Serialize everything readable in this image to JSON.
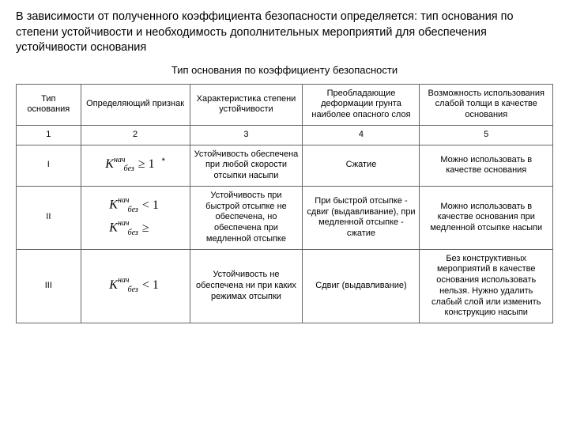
{
  "intro": "В зависимости от полученного коэффициента безопасности определяется: тип основания по степени устойчивости и необходимость дополнительных мероприятий для обеспечения устойчивости основания",
  "caption": "Тип основания по коэффициенту безопасности",
  "headers": {
    "h1": "Тип основания",
    "h2": "Определяющий признак",
    "h3": "Характеристика степени устойчивости",
    "h4": "Преобладающие деформации грунта наиболее опасного слоя",
    "h5": "Возможность использования слабой толщи в качестве основания"
  },
  "numrow": {
    "n1": "1",
    "n2": "2",
    "n3": "3",
    "n4": "4",
    "n5": "5"
  },
  "row1": {
    "type": "I",
    "char": "Устойчивость обеспечена при любой скорости отсыпки насыпи",
    "deform": "Сжатие",
    "use": "Можно использовать в качестве основания"
  },
  "row2": {
    "type": "II",
    "char": "Устойчивость при быстрой отсыпке не обеспечена, но обеспечена при медленной отсыпке",
    "deform": "При быстрой отсыпке - сдвиг (выдавливание), при медленной отсыпке - сжатие",
    "use": "Можно использовать в качестве основания при медленной отсыпке насыпи"
  },
  "row3": {
    "type": "III",
    "char": "Устойчивость не обеспечена ни при каких режимах отсыпки",
    "deform": "Сдвиг (выдавливание)",
    "use": "Без конструктивных мероприятий в качестве основания использовать нельзя. Нужно удалить слабый слой или изменить конструкцию насыпи"
  },
  "formula": {
    "sym_K": "K",
    "sup": "нач",
    "sub": "без",
    "ge": "≥ 1",
    "lt": "< 1",
    "ge_blank": "≥"
  }
}
